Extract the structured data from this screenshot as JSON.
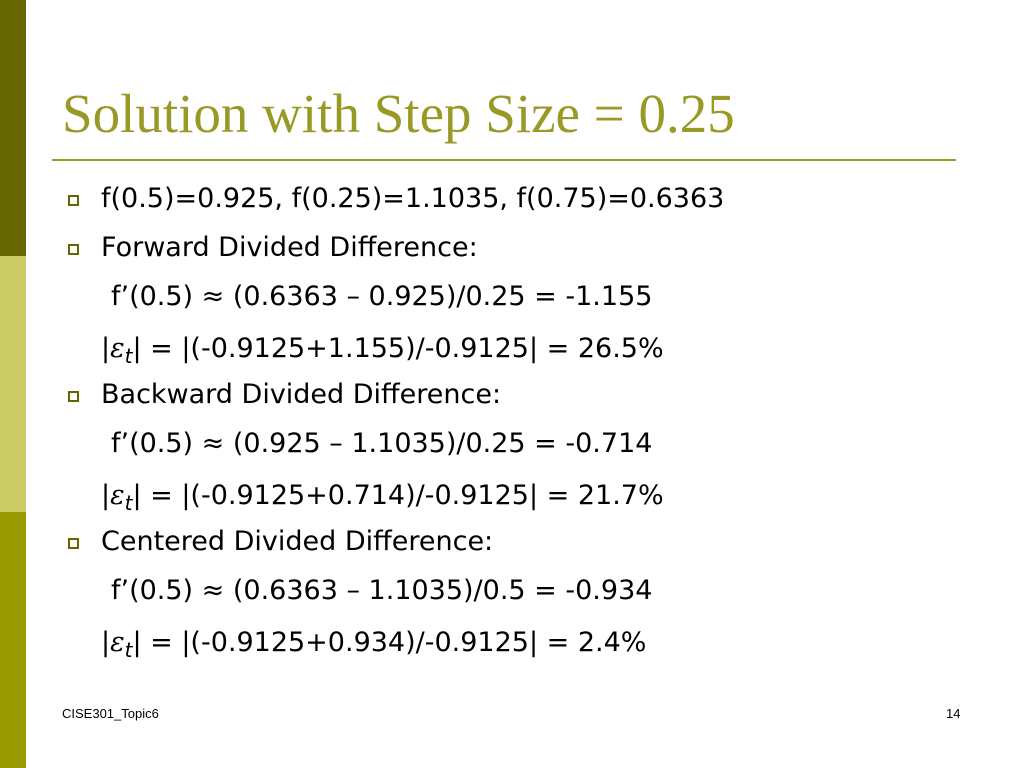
{
  "title": "Solution with Step Size = 0.25",
  "bullets": [
    {
      "text": "f(0.5)=0.925, f(0.25)=1.1035, f(0.75)=0.6363",
      "lines": []
    },
    {
      "text": "Forward Divided Difference:",
      "lines": [
        {
          "derivative": "f’(0.5) ≈ (0.6363 – 0.925)/0.25 = -1.155",
          "error": {
            "open": "|",
            "symbol": "ε",
            "subscript": "t",
            "rest": "| = |(-0.9125+1.155)/-0.9125| = 26.5%"
          }
        }
      ]
    },
    {
      "text": "Backward Divided Difference:",
      "lines": [
        {
          "derivative": "f’(0.5) ≈ (0.925 – 1.1035)/0.25 = -0.714",
          "error": {
            "open": "|",
            "symbol": "ε",
            "subscript": "t",
            "rest": "| = |(-0.9125+0.714)/-0.9125| = 21.7%"
          }
        }
      ]
    },
    {
      "text": "Centered Divided Difference:",
      "lines": [
        {
          "derivative": "f’(0.5) ≈ (0.6363 – 1.1035)/0.5 = -0.934",
          "error": {
            "open": "|",
            "symbol": "ε",
            "subscript": "t",
            "rest": "| = |(-0.9125+0.934)/-0.9125| = 2.4%"
          }
        }
      ]
    }
  ],
  "footer": {
    "left": "CISE301_Topic6",
    "right": "14"
  }
}
